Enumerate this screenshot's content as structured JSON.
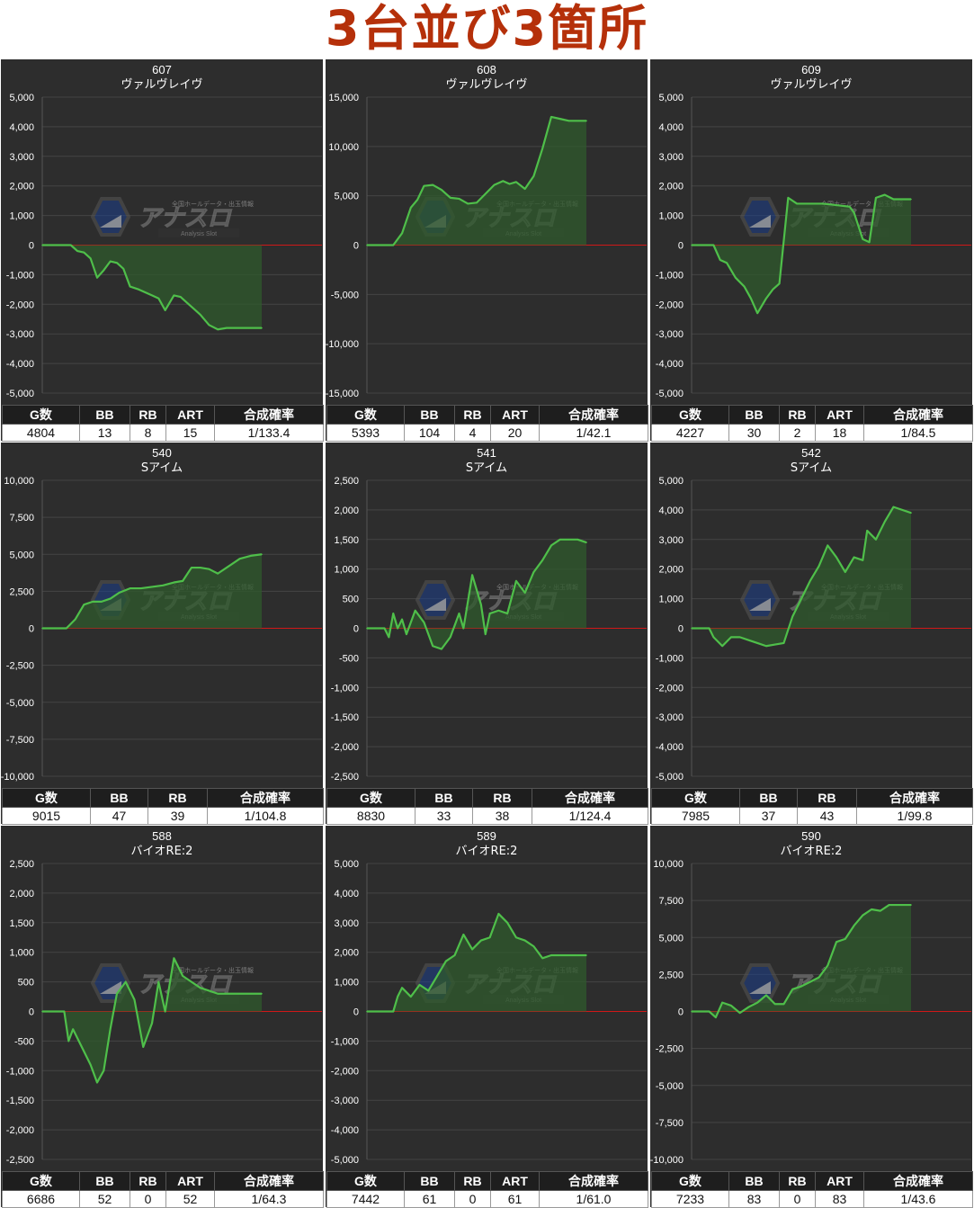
{
  "page": {
    "title": "3台並び3箇所"
  },
  "watermark": {
    "brand": "アナスロ",
    "sub": "Analysis Slot",
    "tagline": "全国ホールデータ・出玉情報"
  },
  "columns_with_art": [
    "G数",
    "BB",
    "RB",
    "ART",
    "合成確率"
  ],
  "columns_no_art": [
    "G数",
    "BB",
    "RB",
    "合成確率"
  ],
  "colors": {
    "line": "#4fbf4a",
    "fill": "#2f5a2c",
    "zero": "#d01818",
    "bg": "#2d2d2d",
    "grid": "#444444"
  },
  "chart_data": [
    {
      "type": "area",
      "machine_no": "607",
      "model": "ヴァルヴレイヴ",
      "ylim": [
        -5000,
        5000
      ],
      "ytick_step": 1000,
      "x": [
        0,
        0.03,
        0.06,
        0.1,
        0.13,
        0.16,
        0.19,
        0.22,
        0.25,
        0.28,
        0.31,
        0.34,
        0.37,
        0.4,
        0.44,
        0.5,
        0.53,
        0.56,
        0.6,
        0.63,
        0.66,
        0.69,
        0.72,
        0.76,
        0.8,
        0.84,
        0.87,
        0.9,
        0.94,
        1
      ],
      "y": [
        0,
        0,
        0,
        0,
        0,
        -200,
        -250,
        -450,
        -1100,
        -850,
        -550,
        -600,
        -800,
        -1400,
        -1500,
        -1700,
        -1800,
        -2200,
        -1700,
        -1750,
        -1950,
        -2150,
        -2350,
        -2700,
        -2850,
        -2800,
        -2800,
        -2800,
        -2800,
        -2800
      ],
      "stats": {
        "g": "4804",
        "bb": "13",
        "rb": "8",
        "art": "15",
        "rate": "1/133.4"
      }
    },
    {
      "type": "area",
      "machine_no": "608",
      "model": "ヴァルヴレイヴ",
      "ylim": [
        -15000,
        15000
      ],
      "ytick_step": 5000,
      "x": [
        0,
        0.04,
        0.08,
        0.12,
        0.16,
        0.2,
        0.23,
        0.26,
        0.3,
        0.34,
        0.38,
        0.42,
        0.46,
        0.5,
        0.54,
        0.58,
        0.62,
        0.65,
        0.68,
        0.72,
        0.76,
        0.8,
        0.84,
        0.88,
        0.92,
        0.96,
        1
      ],
      "y": [
        0,
        0,
        0,
        0,
        1200,
        3800,
        4600,
        6000,
        6100,
        5600,
        4800,
        4700,
        4200,
        4300,
        5200,
        6100,
        6500,
        6200,
        6400,
        5700,
        7000,
        9800,
        13000,
        12800,
        12600,
        12600,
        12600
      ],
      "stats": {
        "g": "5393",
        "bb": "104",
        "rb": "4",
        "art": "20",
        "rate": "1/42.1"
      }
    },
    {
      "type": "area",
      "machine_no": "609",
      "model": "ヴァルヴレイヴ",
      "ylim": [
        -5000,
        5000
      ],
      "ytick_step": 1000,
      "x": [
        0,
        0.04,
        0.08,
        0.1,
        0.13,
        0.16,
        0.2,
        0.24,
        0.27,
        0.3,
        0.34,
        0.37,
        0.4,
        0.44,
        0.48,
        0.52,
        0.56,
        0.6,
        0.66,
        0.72,
        0.74,
        0.78,
        0.81,
        0.84,
        0.88,
        0.92,
        0.96,
        1
      ],
      "y": [
        0,
        0,
        0,
        0,
        -500,
        -600,
        -1100,
        -1400,
        -1800,
        -2300,
        -1800,
        -1500,
        -1300,
        1600,
        1400,
        1400,
        1400,
        1400,
        1350,
        1300,
        1100,
        200,
        100,
        1600,
        1700,
        1550,
        1550,
        1550
      ],
      "stats": {
        "g": "4227",
        "bb": "30",
        "rb": "2",
        "art": "18",
        "rate": "1/84.5"
      }
    },
    {
      "type": "area",
      "machine_no": "540",
      "model": "Sアイム",
      "ylim": [
        -10000,
        10000
      ],
      "ytick_step": 2500,
      "x": [
        0,
        0.04,
        0.08,
        0.11,
        0.15,
        0.19,
        0.23,
        0.27,
        0.31,
        0.35,
        0.4,
        0.45,
        0.5,
        0.55,
        0.6,
        0.64,
        0.68,
        0.72,
        0.76,
        0.8,
        0.85,
        0.9,
        0.95,
        1
      ],
      "y": [
        0,
        0,
        0,
        0,
        600,
        1600,
        1800,
        1800,
        2000,
        2400,
        2700,
        2700,
        2800,
        2900,
        3100,
        3200,
        4100,
        4100,
        4000,
        3700,
        4200,
        4700,
        4900,
        5000
      ],
      "stats": {
        "g": "9015",
        "bb": "47",
        "rb": "39",
        "rate": "1/104.8"
      }
    },
    {
      "type": "area",
      "machine_no": "541",
      "model": "Sアイム",
      "ylim": [
        -2500,
        2500
      ],
      "ytick_step": 500,
      "x": [
        0,
        0.04,
        0.08,
        0.1,
        0.12,
        0.14,
        0.16,
        0.18,
        0.22,
        0.26,
        0.3,
        0.34,
        0.38,
        0.42,
        0.44,
        0.48,
        0.52,
        0.54,
        0.56,
        0.6,
        0.64,
        0.68,
        0.72,
        0.76,
        0.8,
        0.84,
        0.88,
        0.92,
        0.96,
        1
      ],
      "y": [
        0,
        0,
        0,
        -150,
        250,
        0,
        150,
        -100,
        300,
        100,
        -300,
        -350,
        -150,
        250,
        0,
        900,
        400,
        -100,
        250,
        300,
        250,
        800,
        600,
        950,
        1150,
        1400,
        1500,
        1500,
        1500,
        1450
      ],
      "stats": {
        "g": "8830",
        "bb": "33",
        "rb": "38",
        "rate": "1/124.4"
      }
    },
    {
      "type": "area",
      "machine_no": "542",
      "model": "Sアイム",
      "ylim": [
        -5000,
        5000
      ],
      "ytick_step": 1000,
      "x": [
        0,
        0.04,
        0.08,
        0.1,
        0.14,
        0.18,
        0.22,
        0.26,
        0.3,
        0.34,
        0.38,
        0.42,
        0.46,
        0.5,
        0.54,
        0.58,
        0.62,
        0.66,
        0.7,
        0.74,
        0.78,
        0.8,
        0.84,
        0.88,
        0.92,
        1
      ],
      "y": [
        0,
        0,
        0,
        -300,
        -600,
        -300,
        -300,
        -400,
        -500,
        -600,
        -550,
        -500,
        400,
        1000,
        1600,
        2100,
        2800,
        2400,
        1900,
        2400,
        2300,
        3300,
        3000,
        3600,
        4100,
        3900
      ],
      "stats": {
        "g": "7985",
        "bb": "37",
        "rb": "43",
        "rate": "1/99.8"
      }
    },
    {
      "type": "area",
      "machine_no": "588",
      "model": "バイオRE:2",
      "ylim": [
        -2500,
        2500
      ],
      "ytick_step": 500,
      "x": [
        0,
        0.04,
        0.08,
        0.1,
        0.12,
        0.14,
        0.18,
        0.22,
        0.25,
        0.28,
        0.31,
        0.34,
        0.38,
        0.42,
        0.46,
        0.5,
        0.53,
        0.56,
        0.6,
        0.64,
        0.68,
        0.72,
        0.76,
        0.8,
        0.84,
        0.88,
        0.92,
        0.96,
        1
      ],
      "y": [
        0,
        0,
        0,
        0,
        -500,
        -300,
        -600,
        -900,
        -1200,
        -1000,
        -300,
        300,
        500,
        200,
        -600,
        -200,
        500,
        0,
        900,
        600,
        500,
        400,
        350,
        300,
        300,
        300,
        300,
        300,
        300
      ],
      "stats": {
        "g": "6686",
        "bb": "52",
        "rb": "0",
        "art": "52",
        "rate": "1/64.3"
      }
    },
    {
      "type": "area",
      "machine_no": "589",
      "model": "バイオRE:2",
      "ylim": [
        -5000,
        5000
      ],
      "ytick_step": 1000,
      "x": [
        0,
        0.04,
        0.08,
        0.12,
        0.14,
        0.16,
        0.2,
        0.24,
        0.28,
        0.32,
        0.36,
        0.4,
        0.44,
        0.48,
        0.52,
        0.56,
        0.6,
        0.64,
        0.68,
        0.72,
        0.76,
        0.8,
        0.84,
        0.88,
        0.92,
        0.96,
        1
      ],
      "y": [
        0,
        0,
        0,
        0,
        500,
        800,
        500,
        900,
        700,
        1200,
        1700,
        1900,
        2600,
        2100,
        2400,
        2500,
        3300,
        3000,
        2500,
        2400,
        2200,
        1800,
        1900,
        1900,
        1900,
        1900,
        1900
      ],
      "stats": {
        "g": "7442",
        "bb": "61",
        "rb": "0",
        "art": "61",
        "rate": "1/61.0"
      }
    },
    {
      "type": "area",
      "machine_no": "590",
      "model": "バイオRE:2",
      "ylim": [
        -10000,
        10000
      ],
      "ytick_step": 2500,
      "x": [
        0,
        0.04,
        0.08,
        0.11,
        0.14,
        0.18,
        0.22,
        0.26,
        0.3,
        0.34,
        0.38,
        0.42,
        0.46,
        0.5,
        0.54,
        0.58,
        0.62,
        0.66,
        0.7,
        0.74,
        0.78,
        0.82,
        0.86,
        0.9,
        0.94,
        1
      ],
      "y": [
        0,
        0,
        0,
        -400,
        600,
        400,
        -100,
        300,
        600,
        1100,
        500,
        500,
        1500,
        1700,
        2000,
        2300,
        3100,
        4700,
        4900,
        5800,
        6500,
        6900,
        6800,
        7200,
        7200,
        7200
      ],
      "stats": {
        "g": "7233",
        "bb": "83",
        "rb": "0",
        "art": "83",
        "rate": "1/43.6"
      }
    }
  ]
}
